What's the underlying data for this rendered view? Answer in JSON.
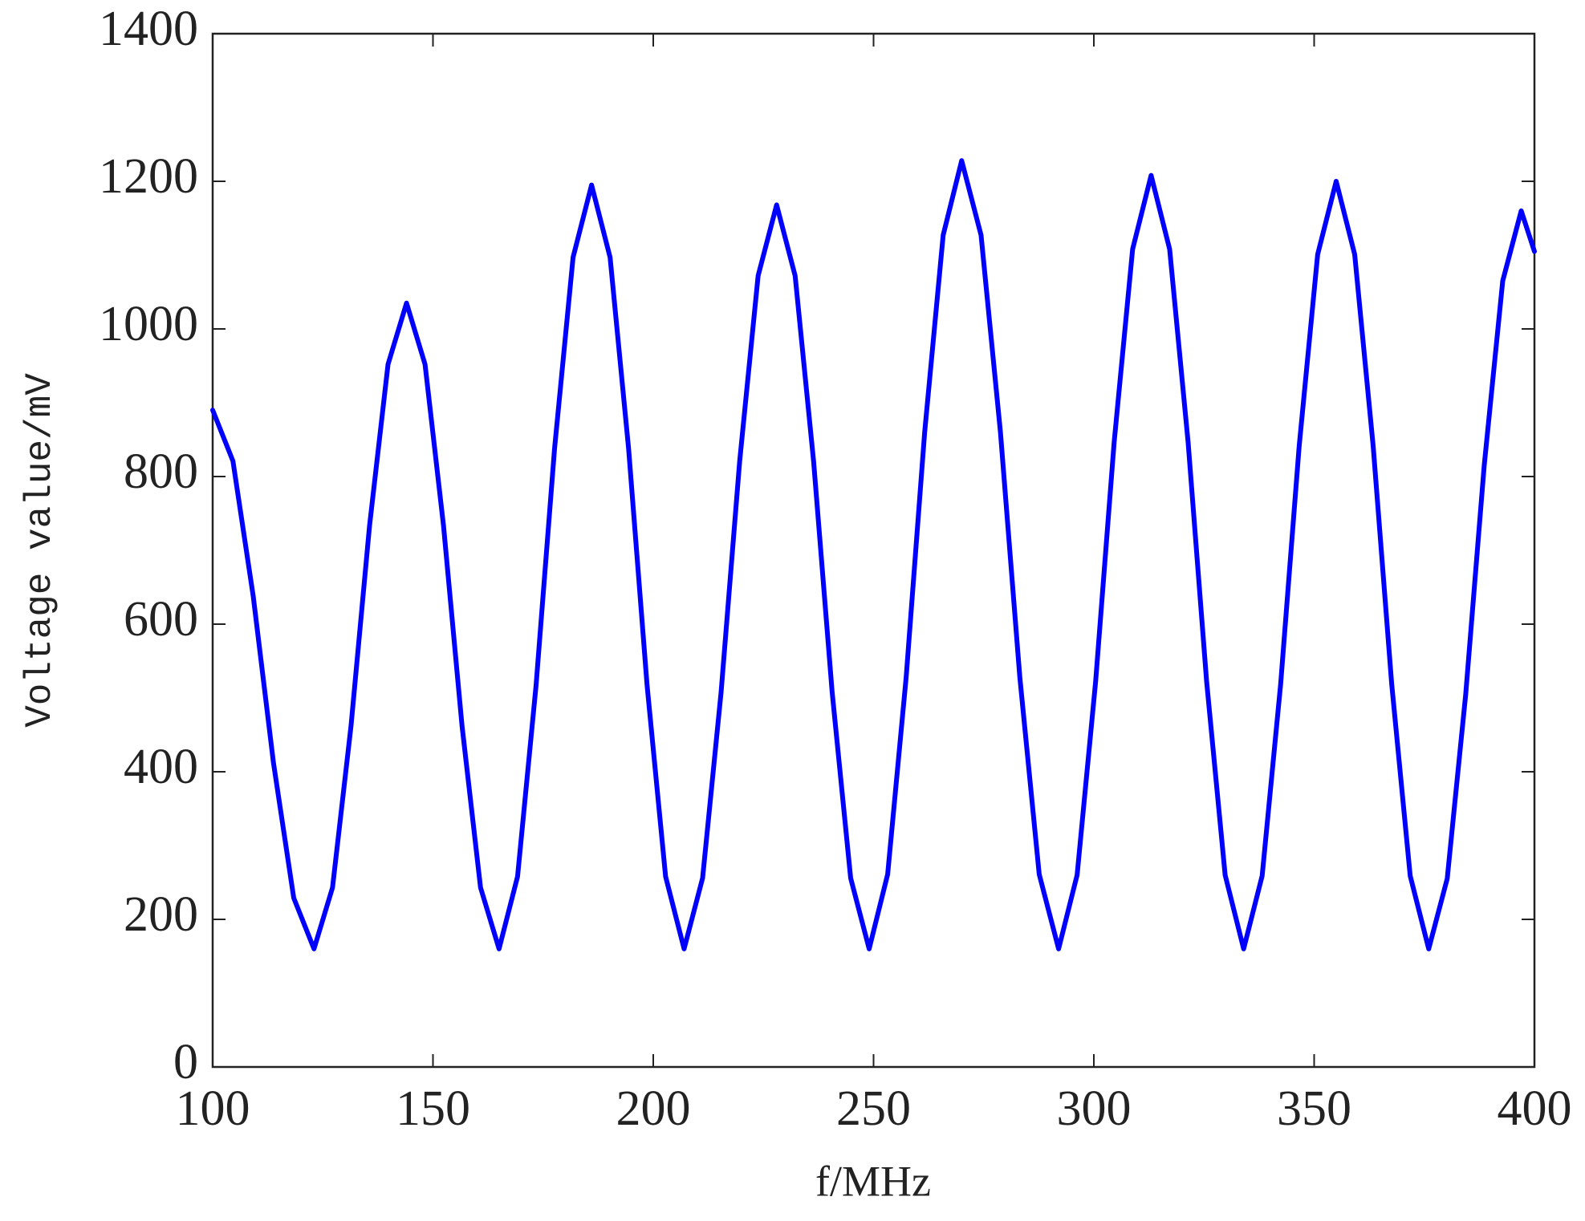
{
  "chart_data": {
    "type": "line",
    "x_label": "f/MHz",
    "y_label": "Voltage value/mV",
    "xlim": [
      100,
      400
    ],
    "xticks": [
      100,
      150,
      200,
      250,
      300,
      350,
      400
    ],
    "ylim": [
      0,
      1400
    ],
    "yticks": [
      0,
      200,
      400,
      600,
      800,
      1000,
      1200,
      1400
    ],
    "grid": false,
    "x": [
      100,
      104.6,
      109.2,
      113.8,
      118.4,
      123,
      127.2,
      131.4,
      135.6,
      139.8,
      144,
      148.2,
      152.4,
      156.6,
      160.8,
      165,
      169.2,
      173.4,
      177.6,
      181.8,
      186,
      190.2,
      194.4,
      198.6,
      202.8,
      207,
      211.2,
      215.4,
      219.6,
      223.8,
      228,
      232.2,
      236.4,
      240.6,
      244.8,
      249,
      253.2,
      257.4,
      261.6,
      265.8,
      270,
      274.4,
      278.8,
      283.2,
      287.6,
      292,
      296.2,
      300.4,
      304.6,
      308.8,
      313,
      317.2,
      321.4,
      325.6,
      329.8,
      334,
      338.2,
      342.4,
      346.6,
      350.8,
      355,
      359.2,
      363.4,
      367.6,
      371.8,
      376,
      380.2,
      384.4,
      388.6,
      392.8,
      397,
      400
    ],
    "series": [
      {
        "name": "Voltage",
        "color": "#0000ff",
        "values": [
          890,
          821,
          638,
          412,
          229,
          160,
          243,
          462,
          733,
          952,
          1035,
          952,
          733,
          462,
          243,
          160,
          258,
          517,
          838,
          1097,
          1195,
          1097,
          838,
          517,
          258,
          160,
          256,
          508,
          820,
          1072,
          1168,
          1072,
          820,
          508,
          256,
          160,
          261,
          528,
          860,
          1127,
          1228,
          1127,
          860,
          528,
          261,
          160,
          260,
          522,
          846,
          1108,
          1208,
          1108,
          846,
          522,
          260,
          160,
          259,
          519,
          841,
          1101,
          1200,
          1101,
          841,
          519,
          259,
          160,
          255,
          505,
          815,
          1065,
          1160,
          1105
        ]
      }
    ]
  }
}
